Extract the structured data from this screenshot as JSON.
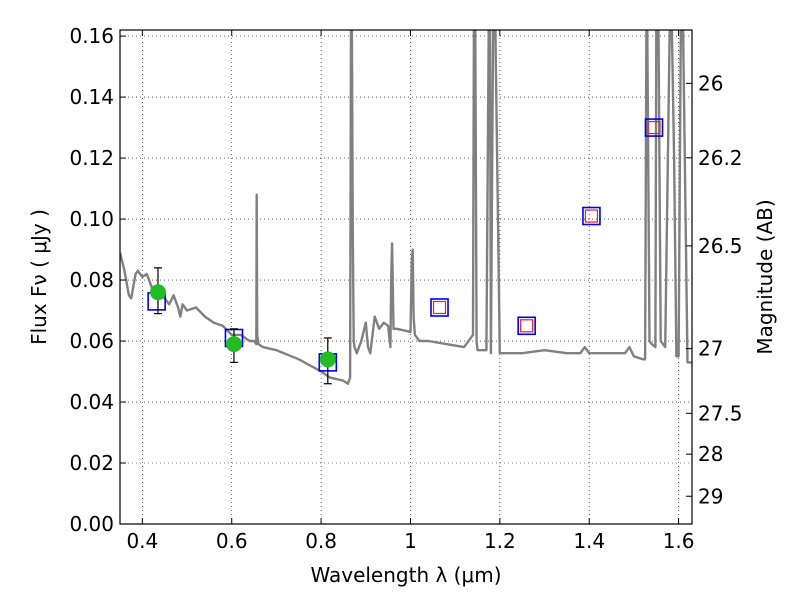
{
  "chart_data": {
    "type": "line",
    "xlabel": "Wavelength  λ (μm)",
    "ylabel": "Flux  Fν  ( μJy )",
    "ylabel_right": "Magnitude (AB)",
    "xlim": [
      0.35,
      1.63
    ],
    "ylim": [
      0.0,
      0.162
    ],
    "grid": true,
    "x_ticks": [
      0.4,
      0.6,
      0.8,
      1.0,
      1.2,
      1.4,
      1.6
    ],
    "x_tick_labels": [
      "0.4",
      "0.6",
      "0.8",
      "1",
      "1.2",
      "1.4",
      "1.6"
    ],
    "y_ticks": [
      0.0,
      0.02,
      0.04,
      0.06,
      0.08,
      0.1,
      0.12,
      0.14,
      0.16
    ],
    "y_tick_labels": [
      "0.00",
      "0.02",
      "0.04",
      "0.06",
      "0.08",
      "0.10",
      "0.12",
      "0.14",
      "0.16"
    ],
    "right_ticks": [
      {
        "label": "26",
        "flux": 0.1445
      },
      {
        "label": "26.2",
        "flux": 0.1201
      },
      {
        "label": "26.5",
        "flux": 0.0912
      },
      {
        "label": "27",
        "flux": 0.0575
      },
      {
        "label": "27.5",
        "flux": 0.0363
      },
      {
        "label": "28",
        "flux": 0.0229
      },
      {
        "label": "29",
        "flux": 0.0091
      }
    ],
    "series": [
      {
        "kind": "line",
        "color": "#808080",
        "x": [
          0.35,
          0.36,
          0.37,
          0.375,
          0.385,
          0.39,
          0.4,
          0.41,
          0.42,
          0.43,
          0.44,
          0.45,
          0.46,
          0.47,
          0.48,
          0.485,
          0.49,
          0.5,
          0.52,
          0.54,
          0.56,
          0.58,
          0.6,
          0.62,
          0.64,
          0.65,
          0.655,
          0.656,
          0.657,
          0.66,
          0.67,
          0.7,
          0.75,
          0.8,
          0.82,
          0.85,
          0.86,
          0.865,
          0.867,
          0.869,
          0.871,
          0.873,
          0.875,
          0.88,
          0.89,
          0.9,
          0.905,
          0.91,
          0.915,
          0.92,
          0.93,
          0.94,
          0.95,
          0.955,
          0.957,
          0.959,
          0.962,
          0.97,
          1.0,
          1.003,
          1.005,
          1.007,
          1.01,
          1.02,
          1.04,
          1.08,
          1.12,
          1.14,
          1.142,
          1.145,
          1.148,
          1.15,
          1.16,
          1.17,
          1.175,
          1.178,
          1.18,
          1.185,
          1.19,
          1.2,
          1.25,
          1.3,
          1.35,
          1.38,
          1.39,
          1.4,
          1.45,
          1.48,
          1.49,
          1.5,
          1.52,
          1.525,
          1.528,
          1.53,
          1.535,
          1.54,
          1.548,
          1.55,
          1.555,
          1.56,
          1.57,
          1.58,
          1.585,
          1.59,
          1.595,
          1.6,
          1.605,
          1.61,
          1.62,
          1.63
        ],
        "y": [
          0.089,
          0.083,
          0.075,
          0.074,
          0.082,
          0.083,
          0.081,
          0.082,
          0.078,
          0.074,
          0.076,
          0.074,
          0.072,
          0.075,
          0.071,
          0.068,
          0.072,
          0.07,
          0.071,
          0.068,
          0.066,
          0.065,
          0.062,
          0.062,
          0.06,
          0.06,
          0.059,
          0.108,
          0.062,
          0.059,
          0.058,
          0.057,
          0.054,
          0.05,
          0.048,
          0.047,
          0.046,
          0.048,
          0.162,
          0.162,
          0.095,
          0.06,
          0.058,
          0.056,
          0.06,
          0.066,
          0.058,
          0.056,
          0.062,
          0.068,
          0.064,
          0.066,
          0.065,
          0.058,
          0.082,
          0.092,
          0.064,
          0.064,
          0.063,
          0.086,
          0.09,
          0.068,
          0.062,
          0.06,
          0.06,
          0.059,
          0.058,
          0.062,
          0.162,
          0.162,
          0.06,
          0.057,
          0.057,
          0.057,
          0.162,
          0.162,
          0.056,
          0.162,
          0.162,
          0.056,
          0.056,
          0.057,
          0.056,
          0.056,
          0.058,
          0.056,
          0.056,
          0.056,
          0.058,
          0.055,
          0.054,
          0.054,
          0.162,
          0.162,
          0.06,
          0.059,
          0.058,
          0.162,
          0.162,
          0.06,
          0.058,
          0.162,
          0.162,
          0.12,
          0.055,
          0.055,
          0.162,
          0.162,
          0.053,
          0.053
        ]
      }
    ],
    "observed_points": {
      "color": "#22bb22",
      "x": [
        0.435,
        0.605,
        0.815
      ],
      "y": [
        0.076,
        0.059,
        0.054
      ],
      "err_low": [
        0.069,
        0.053,
        0.046
      ],
      "err_high": [
        0.084,
        0.064,
        0.061
      ]
    },
    "model_points": {
      "color": "#0000ee",
      "x": [
        0.432,
        0.605,
        0.815,
        1.065,
        1.26,
        1.405,
        1.545
      ],
      "y": [
        0.073,
        0.061,
        0.053,
        0.071,
        0.065,
        0.101,
        0.13
      ]
    },
    "predicted_points": {
      "color": "#ee2222",
      "x": [
        1.065,
        1.26,
        1.405,
        1.545
      ],
      "y": [
        0.071,
        0.065,
        0.101,
        0.13
      ]
    }
  }
}
